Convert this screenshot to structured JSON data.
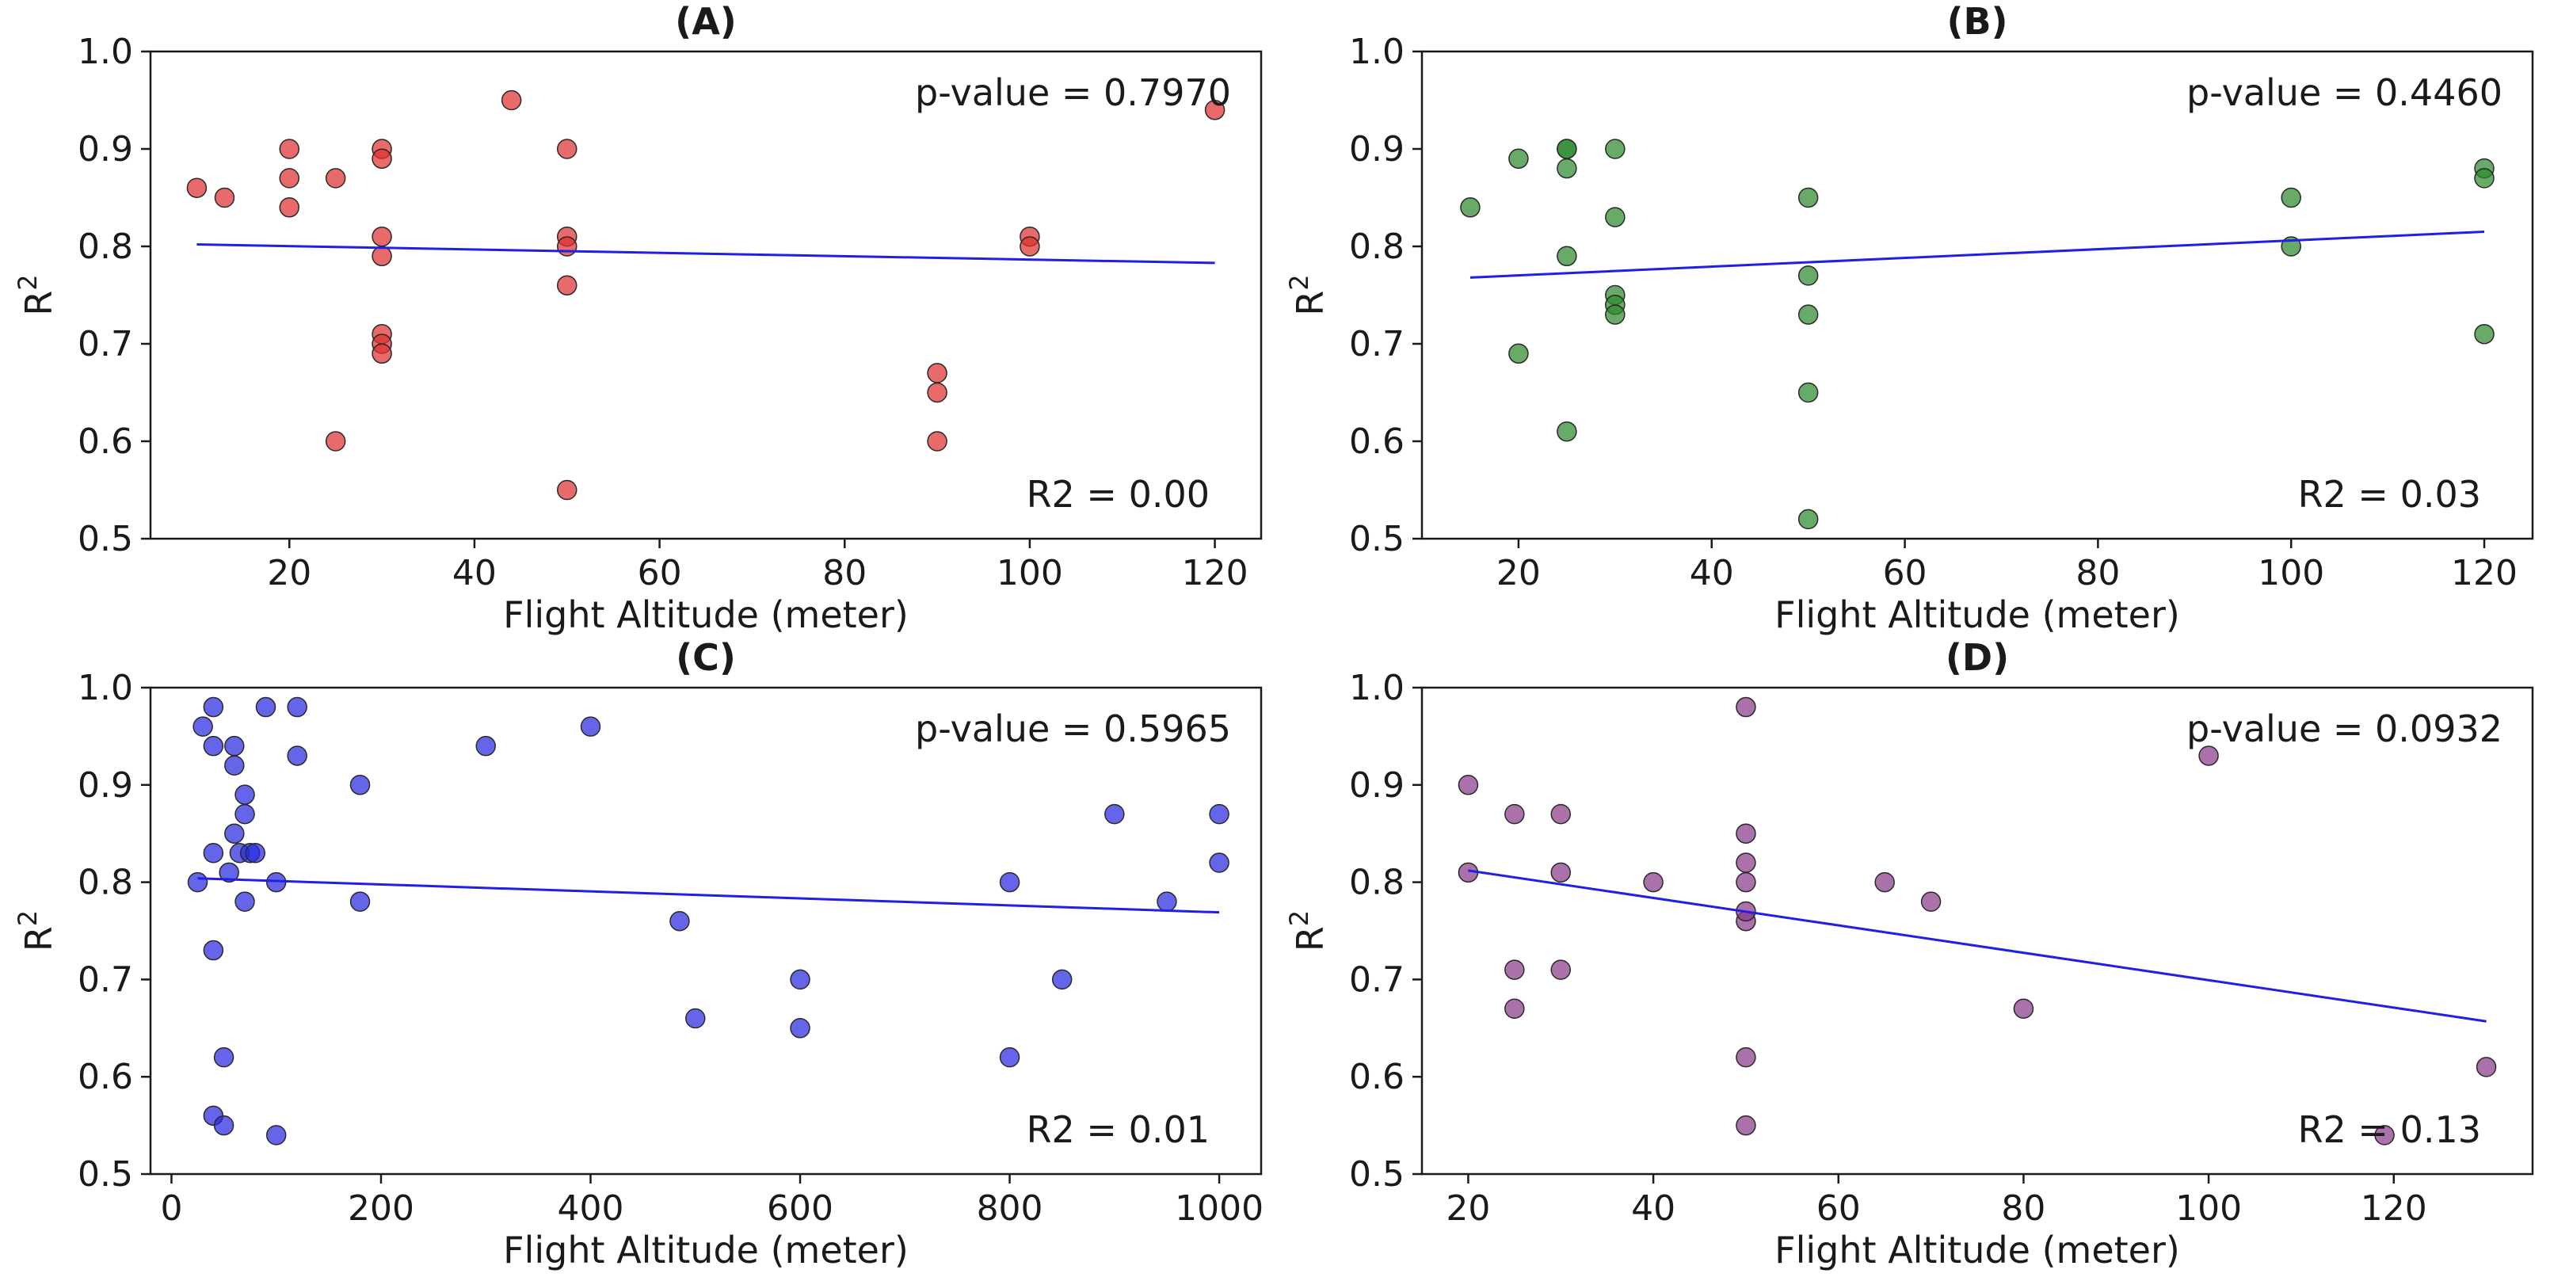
{
  "chart_data": [
    {
      "type": "scatter",
      "panel": "A",
      "title": "(A)",
      "xlabel": "Flight Altitude (meter)",
      "ylabel": "R2",
      "xlim": [
        5,
        125
      ],
      "ylim": [
        0.5,
        1.0
      ],
      "xticks": [
        20,
        40,
        60,
        80,
        100,
        120
      ],
      "yticks": [
        0.5,
        0.6,
        0.7,
        0.8,
        0.9,
        1.0
      ],
      "color": "#e03030",
      "grid": false,
      "series": [
        {
          "x": [
            10,
            13,
            20,
            20,
            20,
            25,
            25,
            30,
            30,
            30,
            30,
            30,
            30,
            30,
            44,
            50,
            50,
            50,
            50,
            50,
            90,
            90,
            90,
            100,
            100,
            120
          ],
          "y": [
            0.86,
            0.85,
            0.9,
            0.87,
            0.84,
            0.87,
            0.6,
            0.9,
            0.89,
            0.81,
            0.79,
            0.71,
            0.7,
            0.69,
            0.95,
            0.9,
            0.81,
            0.8,
            0.76,
            0.55,
            0.67,
            0.65,
            0.6,
            0.81,
            0.8,
            0.94
          ]
        }
      ],
      "fit_line": {
        "x": [
          10,
          120
        ],
        "y": [
          0.802,
          0.783
        ]
      },
      "annotations": {
        "p_value": "p-value = 0.7970",
        "r2": "R2 = 0.00"
      }
    },
    {
      "type": "scatter",
      "panel": "B",
      "title": "(B)",
      "xlabel": "Flight Altitude (meter)",
      "ylabel": "R2",
      "xlim": [
        10,
        125
      ],
      "ylim": [
        0.5,
        1.0
      ],
      "xticks": [
        20,
        40,
        60,
        80,
        100,
        120
      ],
      "yticks": [
        0.5,
        0.6,
        0.7,
        0.8,
        0.9,
        1.0
      ],
      "color": "#2e8b2e",
      "grid": false,
      "series": [
        {
          "x": [
            15,
            20,
            20,
            25,
            25,
            25,
            25,
            25,
            30,
            30,
            30,
            30,
            30,
            50,
            50,
            50,
            50,
            50,
            100,
            100,
            120,
            120,
            120
          ],
          "y": [
            0.84,
            0.89,
            0.69,
            0.9,
            0.88,
            0.79,
            0.61,
            0.9,
            0.83,
            0.75,
            0.74,
            0.73,
            0.9,
            0.85,
            0.77,
            0.73,
            0.65,
            0.52,
            0.85,
            0.8,
            0.88,
            0.87,
            0.71
          ]
        }
      ],
      "fit_line": {
        "x": [
          15,
          120
        ],
        "y": [
          0.768,
          0.815
        ]
      },
      "annotations": {
        "p_value": "p-value = 0.4460",
        "r2": "R2 = 0.03"
      }
    },
    {
      "type": "scatter",
      "panel": "C",
      "title": "(C)",
      "xlabel": "Flight Altitude (meter)",
      "ylabel": "R2",
      "xlim": [
        -20,
        1040
      ],
      "ylim": [
        0.5,
        1.0
      ],
      "xticks": [
        0,
        200,
        400,
        600,
        800,
        1000
      ],
      "yticks": [
        0.5,
        0.6,
        0.7,
        0.8,
        0.9,
        1.0
      ],
      "color": "#2a2ae0",
      "grid": false,
      "series": [
        {
          "x": [
            25,
            30,
            40,
            40,
            40,
            40,
            40,
            50,
            50,
            55,
            60,
            60,
            60,
            65,
            70,
            70,
            70,
            75,
            80,
            90,
            100,
            100,
            120,
            120,
            180,
            180,
            300,
            400,
            485,
            500,
            600,
            600,
            800,
            800,
            850,
            900,
            950,
            1000,
            1000
          ],
          "y": [
            0.8,
            0.96,
            0.98,
            0.94,
            0.83,
            0.73,
            0.56,
            0.55,
            0.62,
            0.81,
            0.94,
            0.92,
            0.85,
            0.83,
            0.89,
            0.87,
            0.78,
            0.83,
            0.83,
            0.98,
            0.8,
            0.54,
            0.98,
            0.93,
            0.9,
            0.78,
            0.94,
            0.96,
            0.76,
            0.66,
            0.7,
            0.65,
            0.8,
            0.62,
            0.7,
            0.87,
            0.78,
            0.87,
            0.82
          ]
        }
      ],
      "fit_line": {
        "x": [
          25,
          1000
        ],
        "y": [
          0.804,
          0.769
        ]
      },
      "annotations": {
        "p_value": "p-value = 0.5965",
        "r2": "R2 = 0.01"
      }
    },
    {
      "type": "scatter",
      "panel": "D",
      "title": "(D)",
      "xlabel": "Flight Altitude (meter)",
      "ylabel": "R2",
      "xlim": [
        15,
        135
      ],
      "ylim": [
        0.5,
        1.0
      ],
      "xticks": [
        20,
        40,
        60,
        80,
        100,
        120
      ],
      "yticks": [
        0.5,
        0.6,
        0.7,
        0.8,
        0.9,
        1.0
      ],
      "color": "#8b3a8b",
      "grid": false,
      "series": [
        {
          "x": [
            20,
            20,
            25,
            25,
            25,
            30,
            30,
            30,
            40,
            50,
            50,
            50,
            50,
            50,
            50,
            50,
            50,
            65,
            70,
            80,
            100,
            119,
            130
          ],
          "y": [
            0.9,
            0.81,
            0.87,
            0.71,
            0.67,
            0.87,
            0.81,
            0.71,
            0.8,
            0.98,
            0.85,
            0.82,
            0.8,
            0.76,
            0.62,
            0.55,
            0.77,
            0.8,
            0.78,
            0.67,
            0.93,
            0.54,
            0.61
          ]
        }
      ],
      "fit_line": {
        "x": [
          20,
          130
        ],
        "y": [
          0.812,
          0.657
        ]
      },
      "annotations": {
        "p_value": "p-value = 0.0932",
        "r2": "R2 = 0.13"
      }
    }
  ]
}
